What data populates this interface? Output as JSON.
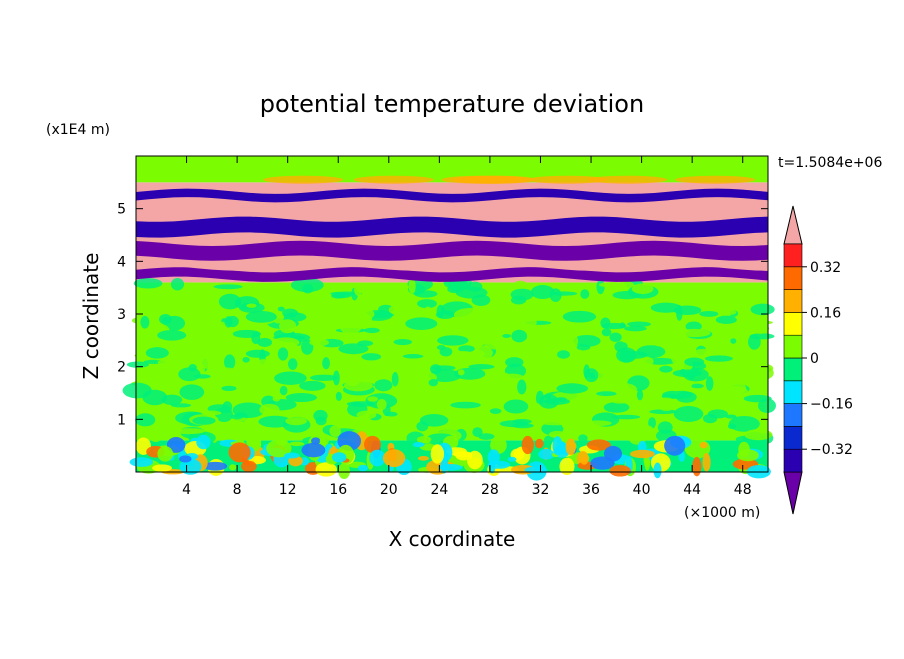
{
  "chart_data": {
    "type": "heatmap",
    "title": "potential temperature deviation",
    "xlabel": "X coordinate",
    "ylabel": "Z coordinate",
    "x_units": "(×1000 m)",
    "y_units": "(x1E4 m)",
    "time_label": "t=1.5084e+06",
    "xlim": [
      0,
      50
    ],
    "ylim": [
      0,
      6
    ],
    "x_ticks": [
      4,
      8,
      12,
      16,
      20,
      24,
      28,
      32,
      36,
      40,
      44,
      48
    ],
    "y_ticks": [
      1,
      2,
      3,
      4,
      5
    ],
    "colorbar": {
      "labels": [
        0.32,
        0.16,
        0,
        -0.16,
        -0.32
      ],
      "label_text": [
        "0.32",
        "0.16",
        "0",
        "−0.16",
        "−0.32"
      ],
      "levels": [
        -0.4,
        -0.32,
        -0.24,
        -0.16,
        -0.08,
        0,
        0.08,
        0.16,
        0.24,
        0.32,
        0.4
      ],
      "colors": [
        "#6a00a8",
        "#2a00b0",
        "#0a2ad0",
        "#1e78ff",
        "#00e5ff",
        "#00f07a",
        "#7cfc00",
        "#ffff00",
        "#ffb000",
        "#ff6a00",
        "#ff2020",
        "#f4a6a6"
      ]
    },
    "layers": [
      {
        "z0": 0.0,
        "z1": 0.6,
        "description_color": "#00f07a"
      },
      {
        "z0": 0.6,
        "z1": 3.6,
        "description_color": "#7cfc00"
      },
      {
        "z0": 3.6,
        "z1": 5.5,
        "description_color": "#f4a6a6"
      },
      {
        "z0": 5.5,
        "z1": 6.0,
        "description_color": "#7cfc00"
      }
    ]
  }
}
